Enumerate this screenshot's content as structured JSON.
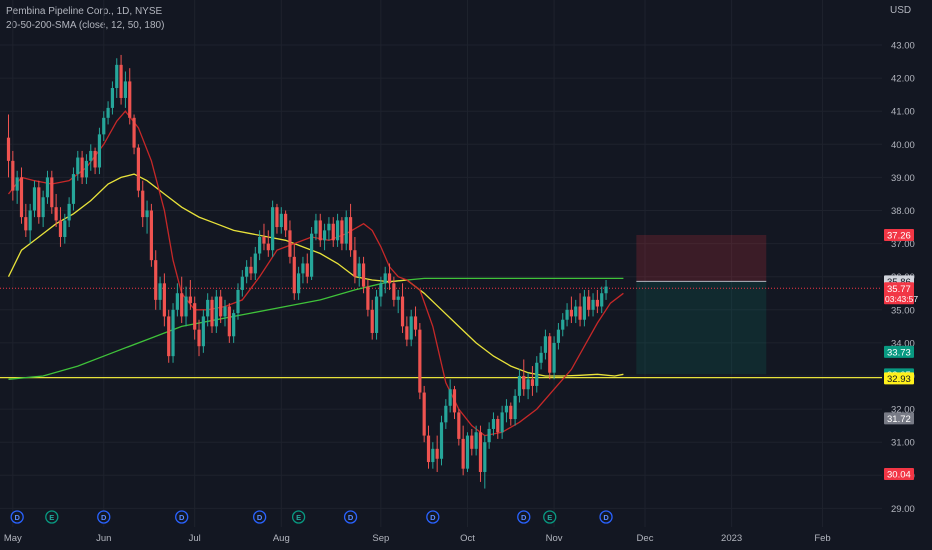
{
  "header": {
    "symbol_line": "Pembina Pipeline Corp., 1D, NYSE",
    "indicator_line": "20-50-200-SMA (close, 12, 50, 180)"
  },
  "price_axis": {
    "unit": "USD"
  },
  "colors": {
    "background": "#131722",
    "up": "#26a69a",
    "down": "#ef5350",
    "sma_fast": "#c62828",
    "sma_mid": "#e8e23a",
    "sma_slow": "#3fc23a",
    "support": "#e8e23a"
  },
  "chart_data": {
    "type": "candlestick",
    "ylim": [
      28.5,
      43.5
    ],
    "y_ticks": [
      "29.00",
      "30.00",
      "31.00",
      "32.00",
      "33.00",
      "34.00",
      "35.00",
      "36.00",
      "37.00",
      "38.00",
      "39.00",
      "40.00",
      "41.00",
      "42.00",
      "43.00"
    ],
    "x_ticks": [
      {
        "label": "May",
        "day": 1
      },
      {
        "label": "Jun",
        "day": 22
      },
      {
        "label": "Jul",
        "day": 43
      },
      {
        "label": "Aug",
        "day": 63
      },
      {
        "label": "Sep",
        "day": 86
      },
      {
        "label": "Oct",
        "day": 106
      },
      {
        "label": "Nov",
        "day": 126
      },
      {
        "label": "Dec",
        "day": 147
      },
      {
        "label": "2023",
        "day": 167
      },
      {
        "label": "Feb",
        "day": 188
      }
    ],
    "price_labels": [
      {
        "value": "37.26",
        "price": 37.26,
        "color": "#f23645"
      },
      {
        "value": "35.86",
        "price": 35.86,
        "color": "#d1d4dc"
      },
      {
        "value": "35.77",
        "price": 35.65,
        "color": "#f23645",
        "sub": "03:43:57"
      },
      {
        "value": "33.73",
        "price": 33.73,
        "color": "#089981"
      },
      {
        "value": "33.05",
        "price": 33.05,
        "color": "#089981"
      },
      {
        "value": "32.93",
        "price": 32.93,
        "color": "#fff11c"
      },
      {
        "value": "31.72",
        "price": 31.72,
        "color": "#787b86"
      },
      {
        "value": "30.04",
        "price": 30.04,
        "color": "#f23645"
      }
    ],
    "current_price": 35.77,
    "support_level": 32.95,
    "position": {
      "start_day": 145,
      "end_day": 175,
      "stop": 37.26,
      "entry": 35.86,
      "target": 33.05
    },
    "events": [
      {
        "type": "D",
        "day": 2
      },
      {
        "type": "E",
        "day": 10
      },
      {
        "type": "D",
        "day": 22
      },
      {
        "type": "D",
        "day": 40
      },
      {
        "type": "D",
        "day": 58
      },
      {
        "type": "E",
        "day": 67
      },
      {
        "type": "D",
        "day": 79
      },
      {
        "type": "D",
        "day": 98
      },
      {
        "type": "D",
        "day": 119
      },
      {
        "type": "E",
        "day": 125
      },
      {
        "type": "D",
        "day": 138
      }
    ],
    "sma_fast": [
      [
        0,
        38.5
      ],
      [
        3,
        39.0
      ],
      [
        6,
        38.9
      ],
      [
        10,
        38.8
      ],
      [
        14,
        38.9
      ],
      [
        18,
        39.3
      ],
      [
        22,
        40.0
      ],
      [
        25,
        40.7
      ],
      [
        27,
        41.0
      ],
      [
        30,
        40.5
      ],
      [
        33,
        39.5
      ],
      [
        36,
        38.0
      ],
      [
        38,
        36.5
      ],
      [
        40,
        35.5
      ],
      [
        43,
        35.0
      ],
      [
        46,
        35.0
      ],
      [
        50,
        35.1
      ],
      [
        54,
        35.3
      ],
      [
        58,
        36.0
      ],
      [
        62,
        36.8
      ],
      [
        66,
        37.0
      ],
      [
        70,
        37.2
      ],
      [
        74,
        37.1
      ],
      [
        78,
        37.3
      ],
      [
        82,
        37.6
      ],
      [
        84,
        37.4
      ],
      [
        86,
        36.9
      ],
      [
        88,
        36.3
      ],
      [
        90,
        36.0
      ],
      [
        92,
        35.9
      ],
      [
        95,
        35.6
      ],
      [
        98,
        34.5
      ],
      [
        101,
        32.8
      ],
      [
        104,
        32.0
      ],
      [
        107,
        31.5
      ],
      [
        110,
        31.2
      ],
      [
        114,
        31.3
      ],
      [
        118,
        31.6
      ],
      [
        122,
        32.0
      ],
      [
        126,
        32.6
      ],
      [
        130,
        33.2
      ],
      [
        133,
        33.9
      ],
      [
        136,
        34.6
      ],
      [
        139,
        35.2
      ],
      [
        142,
        35.5
      ]
    ],
    "sma_mid": [
      [
        0,
        36.0
      ],
      [
        3,
        36.8
      ],
      [
        7,
        37.2
      ],
      [
        11,
        37.6
      ],
      [
        15,
        37.9
      ],
      [
        19,
        38.3
      ],
      [
        23,
        38.8
      ],
      [
        26,
        39.0
      ],
      [
        29,
        39.1
      ],
      [
        32,
        38.9
      ],
      [
        36,
        38.5
      ],
      [
        40,
        38.1
      ],
      [
        44,
        37.8
      ],
      [
        48,
        37.6
      ],
      [
        52,
        37.4
      ],
      [
        56,
        37.3
      ],
      [
        60,
        37.2
      ],
      [
        64,
        37.1
      ],
      [
        68,
        36.9
      ],
      [
        72,
        36.7
      ],
      [
        76,
        36.4
      ],
      [
        80,
        36.0
      ],
      [
        84,
        35.9
      ],
      [
        88,
        35.85
      ],
      [
        92,
        35.9
      ],
      [
        96,
        35.5
      ],
      [
        100,
        35.0
      ],
      [
        104,
        34.5
      ],
      [
        108,
        34.0
      ],
      [
        112,
        33.6
      ],
      [
        116,
        33.3
      ],
      [
        120,
        33.1
      ],
      [
        124,
        33.0
      ],
      [
        128,
        33.0
      ],
      [
        132,
        33.02
      ],
      [
        136,
        33.05
      ],
      [
        140,
        33.0
      ],
      [
        142,
        33.05
      ]
    ],
    "sma_slow": [
      [
        0,
        32.9
      ],
      [
        8,
        33.0
      ],
      [
        16,
        33.3
      ],
      [
        24,
        33.7
      ],
      [
        32,
        34.1
      ],
      [
        40,
        34.5
      ],
      [
        48,
        34.7
      ],
      [
        56,
        34.9
      ],
      [
        64,
        35.1
      ],
      [
        72,
        35.3
      ],
      [
        80,
        35.6
      ],
      [
        88,
        35.85
      ],
      [
        96,
        35.95
      ],
      [
        104,
        35.95
      ],
      [
        112,
        35.95
      ],
      [
        120,
        35.95
      ],
      [
        128,
        35.95
      ],
      [
        136,
        35.95
      ],
      [
        142,
        35.95
      ]
    ],
    "candles": [
      [
        0,
        40.2,
        40.9,
        39.0,
        39.5
      ],
      [
        1,
        39.5,
        39.8,
        38.3,
        38.6
      ],
      [
        2,
        38.6,
        39.2,
        38.2,
        39.0
      ],
      [
        3,
        39.0,
        39.3,
        37.6,
        37.8
      ],
      [
        4,
        37.8,
        38.2,
        37.2,
        37.4
      ],
      [
        5,
        37.4,
        38.2,
        37.0,
        38.0
      ],
      [
        6,
        38.0,
        38.9,
        37.8,
        38.7
      ],
      [
        7,
        38.7,
        38.9,
        37.6,
        37.8
      ],
      [
        8,
        37.8,
        38.6,
        37.5,
        38.4
      ],
      [
        9,
        38.4,
        39.2,
        38.2,
        39.0
      ],
      [
        10,
        39.0,
        39.2,
        37.9,
        38.1
      ],
      [
        11,
        38.1,
        38.5,
        37.5,
        37.7
      ],
      [
        12,
        37.7,
        38.1,
        36.9,
        37.2
      ],
      [
        13,
        37.2,
        37.9,
        37.0,
        37.7
      ],
      [
        14,
        37.7,
        38.4,
        37.5,
        38.2
      ],
      [
        15,
        38.2,
        39.3,
        38.0,
        39.1
      ],
      [
        16,
        39.1,
        39.8,
        38.9,
        39.6
      ],
      [
        17,
        39.6,
        39.8,
        38.8,
        39.0
      ],
      [
        18,
        39.0,
        39.7,
        38.8,
        39.5
      ],
      [
        19,
        39.5,
        40.0,
        39.2,
        39.8
      ],
      [
        20,
        39.8,
        39.9,
        39.1,
        39.3
      ],
      [
        21,
        39.3,
        40.5,
        39.1,
        40.3
      ],
      [
        22,
        40.3,
        41.0,
        40.1,
        40.8
      ],
      [
        23,
        40.8,
        41.3,
        40.6,
        41.1
      ],
      [
        24,
        41.1,
        41.9,
        40.9,
        41.7
      ],
      [
        25,
        41.7,
        42.6,
        41.4,
        42.4
      ],
      [
        26,
        42.4,
        42.7,
        41.2,
        41.4
      ],
      [
        27,
        41.4,
        42.2,
        41.1,
        41.9
      ],
      [
        28,
        41.9,
        42.3,
        40.6,
        40.8
      ],
      [
        29,
        40.8,
        40.9,
        39.7,
        39.9
      ],
      [
        30,
        39.9,
        40.0,
        38.4,
        38.6
      ],
      [
        31,
        38.6,
        38.9,
        37.5,
        37.8
      ],
      [
        32,
        37.8,
        38.3,
        37.3,
        38.0
      ],
      [
        33,
        38.0,
        38.2,
        36.3,
        36.5
      ],
      [
        34,
        36.5,
        36.8,
        35.0,
        35.3
      ],
      [
        35,
        35.3,
        36.0,
        35.0,
        35.8
      ],
      [
        36,
        35.8,
        36.1,
        34.5,
        34.8
      ],
      [
        37,
        34.8,
        35.0,
        33.4,
        33.6
      ],
      [
        38,
        33.6,
        35.2,
        33.4,
        35.0
      ],
      [
        39,
        35.0,
        35.8,
        34.8,
        35.5
      ],
      [
        40,
        35.5,
        36.0,
        34.6,
        34.8
      ],
      [
        41,
        34.8,
        35.7,
        34.5,
        35.4
      ],
      [
        42,
        35.4,
        35.9,
        35.0,
        35.2
      ],
      [
        43,
        35.2,
        35.4,
        34.1,
        34.4
      ],
      [
        44,
        34.4,
        34.7,
        33.6,
        33.9
      ],
      [
        45,
        33.9,
        35.0,
        33.7,
        34.8
      ],
      [
        46,
        34.8,
        35.5,
        34.5,
        35.3
      ],
      [
        47,
        35.3,
        35.4,
        34.3,
        34.5
      ],
      [
        48,
        34.5,
        35.6,
        34.3,
        35.4
      ],
      [
        49,
        35.4,
        35.6,
        34.6,
        34.8
      ],
      [
        50,
        34.8,
        35.3,
        34.5,
        35.1
      ],
      [
        51,
        35.1,
        35.2,
        34.0,
        34.2
      ],
      [
        52,
        34.2,
        35.0,
        34.0,
        34.9
      ],
      [
        53,
        34.9,
        35.8,
        34.7,
        35.6
      ],
      [
        54,
        35.6,
        36.2,
        35.4,
        36.0
      ],
      [
        55,
        36.0,
        36.5,
        35.8,
        36.3
      ],
      [
        56,
        36.3,
        36.6,
        35.9,
        36.1
      ],
      [
        57,
        36.1,
        36.9,
        35.9,
        36.7
      ],
      [
        58,
        36.7,
        37.4,
        36.5,
        37.2
      ],
      [
        59,
        37.2,
        37.6,
        36.8,
        37.0
      ],
      [
        60,
        37.0,
        37.4,
        36.6,
        36.8
      ],
      [
        61,
        36.8,
        38.3,
        36.6,
        38.1
      ],
      [
        62,
        38.1,
        38.2,
        37.3,
        37.5
      ],
      [
        63,
        37.5,
        38.1,
        37.3,
        37.9
      ],
      [
        64,
        37.9,
        38.0,
        37.2,
        37.4
      ],
      [
        65,
        37.4,
        37.7,
        36.4,
        36.6
      ],
      [
        66,
        36.6,
        37.0,
        35.3,
        35.5
      ],
      [
        67,
        35.5,
        36.3,
        35.3,
        36.1
      ],
      [
        68,
        36.1,
        36.6,
        35.8,
        36.4
      ],
      [
        69,
        36.4,
        36.7,
        35.8,
        36.0
      ],
      [
        70,
        36.0,
        37.5,
        35.9,
        37.3
      ],
      [
        71,
        37.3,
        37.9,
        37.1,
        37.7
      ],
      [
        72,
        37.7,
        37.9,
        36.9,
        37.1
      ],
      [
        73,
        37.1,
        37.6,
        36.8,
        37.4
      ],
      [
        74,
        37.4,
        37.8,
        37.1,
        37.6
      ],
      [
        75,
        37.6,
        37.8,
        36.9,
        37.1
      ],
      [
        76,
        37.1,
        37.9,
        36.9,
        37.7
      ],
      [
        77,
        37.7,
        37.8,
        36.8,
        37.0
      ],
      [
        78,
        37.0,
        38.0,
        36.8,
        37.8
      ],
      [
        79,
        37.8,
        38.2,
        36.6,
        36.8
      ],
      [
        80,
        36.8,
        37.2,
        35.8,
        36.0
      ],
      [
        81,
        36.0,
        36.6,
        35.7,
        36.4
      ],
      [
        82,
        36.4,
        36.6,
        35.5,
        35.7
      ],
      [
        83,
        35.7,
        35.9,
        34.8,
        35.0
      ],
      [
        84,
        35.0,
        35.3,
        34.1,
        34.3
      ],
      [
        85,
        34.3,
        35.6,
        34.1,
        35.4
      ],
      [
        86,
        35.4,
        36.0,
        35.1,
        35.8
      ],
      [
        87,
        35.8,
        36.3,
        35.5,
        36.1
      ],
      [
        88,
        36.1,
        36.4,
        35.6,
        35.8
      ],
      [
        89,
        35.8,
        36.0,
        35.1,
        35.3
      ],
      [
        90,
        35.3,
        35.6,
        34.9,
        35.4
      ],
      [
        91,
        35.4,
        35.8,
        34.3,
        34.5
      ],
      [
        92,
        34.5,
        34.8,
        33.9,
        34.1
      ],
      [
        93,
        34.1,
        35.0,
        33.9,
        34.8
      ],
      [
        94,
        34.8,
        35.1,
        34.2,
        34.4
      ],
      [
        95,
        34.4,
        34.6,
        32.3,
        32.5
      ],
      [
        96,
        32.5,
        32.7,
        31.0,
        31.2
      ],
      [
        97,
        31.2,
        31.5,
        30.2,
        30.4
      ],
      [
        98,
        30.4,
        31.0,
        30.2,
        30.8
      ],
      [
        99,
        30.8,
        31.2,
        30.1,
        30.5
      ],
      [
        100,
        30.5,
        31.8,
        30.3,
        31.6
      ],
      [
        101,
        31.6,
        32.3,
        31.4,
        32.1
      ],
      [
        102,
        32.1,
        32.9,
        31.9,
        32.6
      ],
      [
        103,
        32.6,
        32.7,
        31.7,
        31.9
      ],
      [
        104,
        31.9,
        32.0,
        30.9,
        31.1
      ],
      [
        105,
        31.1,
        31.5,
        30.0,
        30.2
      ],
      [
        106,
        30.2,
        31.3,
        30.1,
        31.2
      ],
      [
        107,
        31.2,
        31.4,
        30.6,
        30.8
      ],
      [
        108,
        30.8,
        31.5,
        30.6,
        31.3
      ],
      [
        109,
        31.3,
        31.5,
        29.8,
        30.1
      ],
      [
        110,
        30.1,
        31.2,
        29.6,
        31.0
      ],
      [
        111,
        31.0,
        31.6,
        30.8,
        31.4
      ],
      [
        112,
        31.4,
        31.9,
        31.2,
        31.7
      ],
      [
        113,
        31.7,
        31.8,
        31.1,
        31.3
      ],
      [
        114,
        31.3,
        32.1,
        31.1,
        31.9
      ],
      [
        115,
        31.9,
        32.3,
        31.6,
        32.1
      ],
      [
        116,
        32.1,
        32.2,
        31.5,
        31.7
      ],
      [
        117,
        31.7,
        32.6,
        31.5,
        32.4
      ],
      [
        118,
        32.4,
        33.2,
        32.2,
        33.0
      ],
      [
        119,
        33.0,
        33.5,
        32.4,
        32.6
      ],
      [
        120,
        32.6,
        33.1,
        32.3,
        32.9
      ],
      [
        121,
        32.9,
        33.3,
        32.4,
        32.7
      ],
      [
        122,
        32.7,
        33.6,
        32.5,
        33.4
      ],
      [
        123,
        33.4,
        33.9,
        33.2,
        33.7
      ],
      [
        124,
        33.7,
        34.4,
        33.5,
        34.2
      ],
      [
        125,
        34.2,
        34.3,
        32.9,
        33.1
      ],
      [
        126,
        33.1,
        34.2,
        32.9,
        34.0
      ],
      [
        127,
        34.0,
        34.6,
        33.8,
        34.4
      ],
      [
        128,
        34.4,
        34.9,
        34.2,
        34.7
      ],
      [
        129,
        34.7,
        35.2,
        34.5,
        35.0
      ],
      [
        130,
        35.0,
        35.4,
        34.6,
        34.8
      ],
      [
        131,
        34.8,
        35.3,
        34.6,
        35.1
      ],
      [
        132,
        35.1,
        35.5,
        34.5,
        34.7
      ],
      [
        133,
        34.7,
        35.6,
        34.5,
        35.4
      ],
      [
        134,
        35.4,
        35.6,
        34.8,
        35.0
      ],
      [
        135,
        35.0,
        35.5,
        34.8,
        35.3
      ],
      [
        136,
        35.3,
        35.6,
        34.9,
        35.1
      ],
      [
        137,
        35.1,
        35.7,
        34.9,
        35.5
      ],
      [
        138,
        35.5,
        35.9,
        35.3,
        35.7
      ]
    ]
  }
}
